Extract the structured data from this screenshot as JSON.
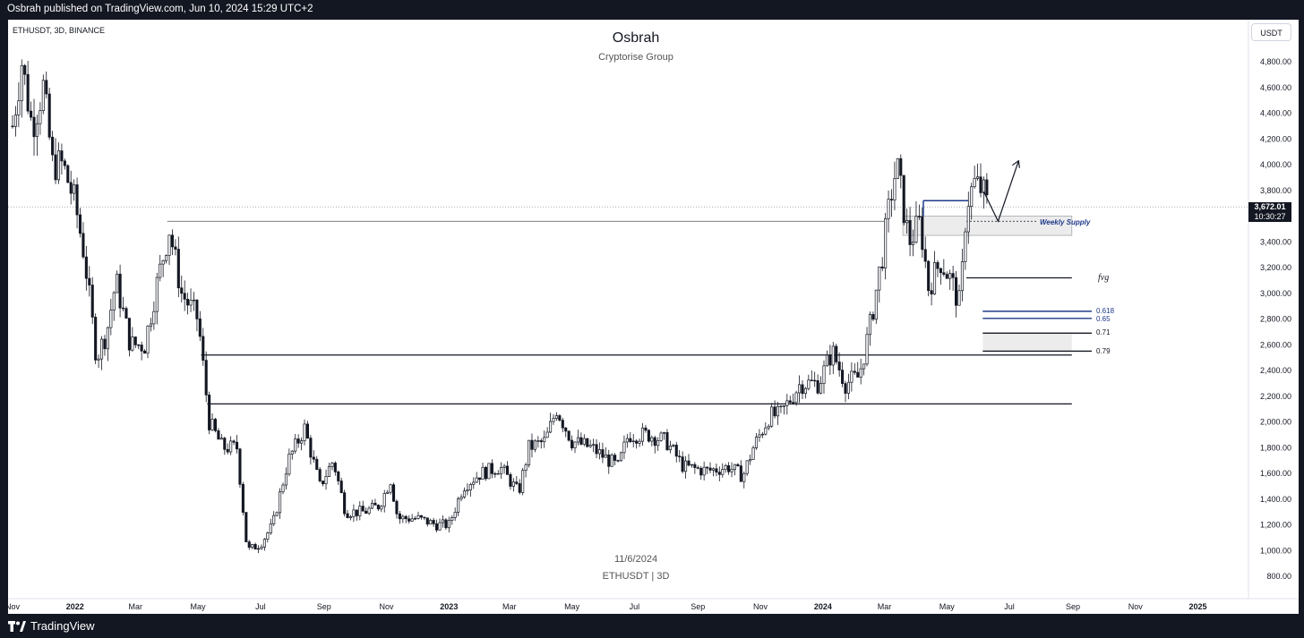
{
  "header": {
    "published": "Osbrah published on TradingView.com, Jun 10, 2024 15:29 UTC+2"
  },
  "footer": {
    "brand": "TradingView"
  },
  "chart_header": {
    "symbol": "ETHUSDT, 3D, BINANCE",
    "title": "Osbrah",
    "subtitle": "Cryptorise Group",
    "currency_button": "USDT"
  },
  "watermark": {
    "date": "11/6/2024",
    "symbol": "ETHUSDT | 3D"
  },
  "last_price": {
    "value": "3,672.01",
    "countdown": "10:30:27"
  },
  "annotations": {
    "weekly_supply": "Weekly Supply",
    "fvg": "fvg",
    "fib_0618": "0.618",
    "fib_065": "0.65",
    "fib_071": "0.71",
    "fib_079": "0.79"
  },
  "colors": {
    "background": "#ffffff",
    "frame": "#131722",
    "candle": "#131722",
    "fib_blue": "#1e3a8a",
    "zone_fill": "#e8e8e8"
  },
  "chart_data": {
    "type": "candlestick",
    "symbol": "ETHUSDT",
    "interval": "3D",
    "exchange": "BINANCE",
    "y_ticks": [
      800,
      1000,
      1200,
      1400,
      1600,
      1800,
      2000,
      2200,
      2400,
      2600,
      2800,
      3000,
      3200,
      3400,
      3600,
      3800,
      4000,
      4200,
      4400,
      4600,
      4800
    ],
    "y_tick_labels": [
      "800.00",
      "1,000.00",
      "1,200.00",
      "1,400.00",
      "1,600.00",
      "1,800.00",
      "2,000.00",
      "2,200.00",
      "2,400.00",
      "2,600.00",
      "2,800.00",
      "3,000.00",
      "3,200.00",
      "3,400.00",
      "3,600.00",
      "3,800.00",
      "4,000.00",
      "4,200.00",
      "4,400.00",
      "4,600.00",
      "4,800.00"
    ],
    "ylim": [
      700,
      5000
    ],
    "x_range": [
      "2021-11-01",
      "2025-02-15"
    ],
    "x_ticks": [
      {
        "label": "Nov",
        "date": "2021-11-01",
        "bold": false
      },
      {
        "label": "2022",
        "date": "2022-01-01",
        "bold": true
      },
      {
        "label": "Mar",
        "date": "2022-03-01",
        "bold": false
      },
      {
        "label": "May",
        "date": "2022-05-01",
        "bold": false
      },
      {
        "label": "Jul",
        "date": "2022-07-01",
        "bold": false
      },
      {
        "label": "Sep",
        "date": "2022-09-01",
        "bold": false
      },
      {
        "label": "Nov",
        "date": "2022-11-01",
        "bold": false
      },
      {
        "label": "2023",
        "date": "2023-01-01",
        "bold": true
      },
      {
        "label": "Mar",
        "date": "2023-03-01",
        "bold": false
      },
      {
        "label": "May",
        "date": "2023-05-01",
        "bold": false
      },
      {
        "label": "Jul",
        "date": "2023-07-01",
        "bold": false
      },
      {
        "label": "Sep",
        "date": "2023-09-01",
        "bold": false
      },
      {
        "label": "Nov",
        "date": "2023-11-01",
        "bold": false
      },
      {
        "label": "2024",
        "date": "2024-01-01",
        "bold": true
      },
      {
        "label": "Mar",
        "date": "2024-03-01",
        "bold": false
      },
      {
        "label": "May",
        "date": "2024-05-01",
        "bold": false
      },
      {
        "label": "Jul",
        "date": "2024-07-01",
        "bold": false
      },
      {
        "label": "Sep",
        "date": "2024-09-01",
        "bold": false
      },
      {
        "label": "Nov",
        "date": "2024-11-01",
        "bold": false
      },
      {
        "label": "2025",
        "date": "2025-01-01",
        "bold": true
      }
    ],
    "last_price": 3672.01,
    "price_path": [
      [
        "2021-11-01",
        4300
      ],
      [
        "2021-11-10",
        4800
      ],
      [
        "2021-11-20",
        4300
      ],
      [
        "2021-12-01",
        4600
      ],
      [
        "2021-12-10",
        4000
      ],
      [
        "2021-12-20",
        4000
      ],
      [
        "2022-01-01",
        3700
      ],
      [
        "2022-01-10",
        3300
      ],
      [
        "2022-01-22",
        2500
      ],
      [
        "2022-02-01",
        2700
      ],
      [
        "2022-02-10",
        3100
      ],
      [
        "2022-02-24",
        2600
      ],
      [
        "2022-03-10",
        2600
      ],
      [
        "2022-03-20",
        3000
      ],
      [
        "2022-04-03",
        3500
      ],
      [
        "2022-04-15",
        3000
      ],
      [
        "2022-05-01",
        2800
      ],
      [
        "2022-05-12",
        2000
      ],
      [
        "2022-05-25",
        1800
      ],
      [
        "2022-06-08",
        1800
      ],
      [
        "2022-06-18",
        1000
      ],
      [
        "2022-07-01",
        1050
      ],
      [
        "2022-07-13",
        1200
      ],
      [
        "2022-07-28",
        1700
      ],
      [
        "2022-08-13",
        1950
      ],
      [
        "2022-08-28",
        1500
      ],
      [
        "2022-09-10",
        1700
      ],
      [
        "2022-09-22",
        1300
      ],
      [
        "2022-10-10",
        1300
      ],
      [
        "2022-10-25",
        1350
      ],
      [
        "2022-11-05",
        1550
      ],
      [
        "2022-11-12",
        1250
      ],
      [
        "2022-12-01",
        1250
      ],
      [
        "2022-12-20",
        1200
      ],
      [
        "2023-01-01",
        1200
      ],
      [
        "2023-01-15",
        1500
      ],
      [
        "2023-02-01",
        1600
      ],
      [
        "2023-02-20",
        1650
      ],
      [
        "2023-03-10",
        1450
      ],
      [
        "2023-03-20",
        1800
      ],
      [
        "2023-04-05",
        1850
      ],
      [
        "2023-04-16",
        2100
      ],
      [
        "2023-05-01",
        1850
      ],
      [
        "2023-05-20",
        1800
      ],
      [
        "2023-06-15",
        1650
      ],
      [
        "2023-06-25",
        1900
      ],
      [
        "2023-07-15",
        1900
      ],
      [
        "2023-08-01",
        1850
      ],
      [
        "2023-08-18",
        1650
      ],
      [
        "2023-09-10",
        1620
      ],
      [
        "2023-10-01",
        1650
      ],
      [
        "2023-10-15",
        1580
      ],
      [
        "2023-10-25",
        1800
      ],
      [
        "2023-11-10",
        2050
      ],
      [
        "2023-11-20",
        2050
      ],
      [
        "2023-12-10",
        2300
      ],
      [
        "2023-12-28",
        2300
      ],
      [
        "2024-01-10",
        2550
      ],
      [
        "2024-01-23",
        2300
      ],
      [
        "2024-02-05",
        2350
      ],
      [
        "2024-02-15",
        2700
      ],
      [
        "2024-02-28",
        3300
      ],
      [
        "2024-03-10",
        3900
      ],
      [
        "2024-03-14",
        3950
      ],
      [
        "2024-03-25",
        3400
      ],
      [
        "2024-04-05",
        3550
      ],
      [
        "2024-04-13",
        3050
      ],
      [
        "2024-04-25",
        3250
      ],
      [
        "2024-05-05",
        3100
      ],
      [
        "2024-05-14",
        2900
      ],
      [
        "2024-05-20",
        3700
      ],
      [
        "2024-05-28",
        3850
      ],
      [
        "2024-06-05",
        3800
      ],
      [
        "2024-06-10",
        3672
      ]
    ],
    "levels": [
      {
        "name": "resistance-2022-high",
        "price": 3560,
        "from": "2022-04-01",
        "to": "2024-03-01"
      },
      {
        "name": "range-top",
        "price": 2520,
        "from": "2022-05-04",
        "to": "2024-08-31"
      },
      {
        "name": "range-bottom",
        "price": 2140,
        "from": "2022-05-10",
        "to": "2024-08-31"
      },
      {
        "name": "fvg",
        "price": 3120,
        "from": "2024-05-20",
        "to": "2024-08-31",
        "label": "fvg"
      }
    ],
    "zones": [
      {
        "name": "weekly-supply",
        "from_price": 3450,
        "to_price": 3600,
        "from": "2024-03-19",
        "to": "2024-08-31",
        "label": "Weekly Supply"
      },
      {
        "name": "fib-071-079",
        "from_price": 2550,
        "to_price": 2690,
        "from": "2024-06-05",
        "to": "2024-08-31"
      }
    ],
    "fib_levels": [
      {
        "label": "0.618",
        "price": 2860,
        "color": "#1e3a8a"
      },
      {
        "label": "0.65",
        "price": 2805,
        "color": "#1e3a8a"
      },
      {
        "label": "0.71",
        "price": 2690,
        "color": "#131722"
      },
      {
        "label": "0.79",
        "price": 2550,
        "color": "#131722"
      }
    ],
    "projection": [
      [
        "2024-06-06",
        3790
      ],
      [
        "2024-06-20",
        3560
      ],
      [
        "2024-07-10",
        4030
      ]
    ]
  }
}
